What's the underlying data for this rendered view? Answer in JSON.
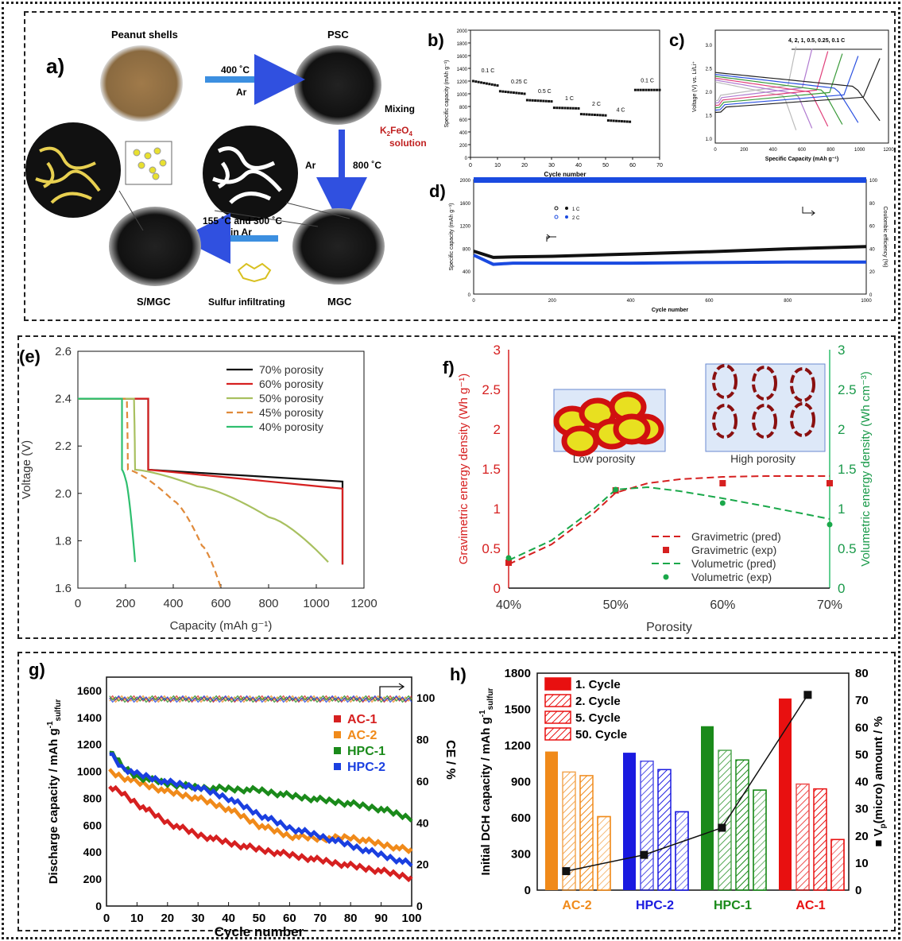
{
  "panel_labels": {
    "a": "a)",
    "b": "b)",
    "c": "c)",
    "d": "d)",
    "e": "(e)",
    "f": "f)",
    "g": "g)",
    "h": "h)"
  },
  "schematic": {
    "peanut_shells": "Peanut shells",
    "psc": "PSC",
    "step1_temp": "400 ˚C",
    "step1_gas": "Ar",
    "mixing": "Mixing",
    "k2feo4": "K",
    "k2feo4_sub": "2",
    "k2feo4_rest": "FeO",
    "k2feo4_sub2": "4",
    "solution": "solution",
    "step2_gas": "Ar",
    "step2_temp": "800 ˚C",
    "mgc": "MGC",
    "step3_line1": "155 ˚C and 300 ˚C",
    "step3_line2": "in Ar",
    "sulfur": "Sulfur infiltrating",
    "smgc": "S/MGC"
  },
  "colors": {
    "black": "#111111",
    "red": "#d62020",
    "olive": "#a8c060",
    "orange": "#e08a3a",
    "green": "#2fbf6f",
    "blue": "#1a3fe0",
    "ggreen": "#1a8a1a",
    "gorange": "#f08a1a",
    "hc_orange": "#f08a1a",
    "hc_blue": "#1a1ae0",
    "hc_green": "#1a8a1a",
    "hc_red": "#e81010"
  },
  "chart_data": [
    {
      "id": "b",
      "type": "scatter",
      "xlabel": "Cycle number",
      "ylabel": "Specific capacity (mAh g⁻¹)",
      "xlim": [
        0,
        70
      ],
      "ylim": [
        0,
        2000
      ],
      "xticks": [
        0,
        10,
        20,
        30,
        40,
        50,
        60,
        70
      ],
      "yticks": [
        0,
        200,
        400,
        600,
        800,
        1000,
        1200,
        1400,
        1600,
        1800,
        2000
      ],
      "rate_labels": [
        {
          "label": "0.1 C",
          "x": 4,
          "y": 1340
        },
        {
          "label": "0.25 C",
          "x": 15,
          "y": 1160
        },
        {
          "label": "0.5 C",
          "x": 25,
          "y": 1010
        },
        {
          "label": "1 C",
          "x": 35,
          "y": 900
        },
        {
          "label": "2 C",
          "x": 45,
          "y": 810
        },
        {
          "label": "4 C",
          "x": 54,
          "y": 720
        },
        {
          "label": "0.1 C",
          "x": 63,
          "y": 1180
        }
      ],
      "segments": [
        {
          "x": [
            1,
            10
          ],
          "y": [
            1200,
            1130
          ]
        },
        {
          "x": [
            11,
            20
          ],
          "y": [
            1040,
            1000
          ]
        },
        {
          "x": [
            21,
            30
          ],
          "y": [
            900,
            880
          ]
        },
        {
          "x": [
            31,
            40
          ],
          "y": [
            780,
            770
          ]
        },
        {
          "x": [
            41,
            50
          ],
          "y": [
            680,
            660
          ]
        },
        {
          "x": [
            51,
            59
          ],
          "y": [
            580,
            560
          ]
        },
        {
          "x": [
            61,
            70
          ],
          "y": [
            1060,
            1060
          ]
        }
      ]
    },
    {
      "id": "c",
      "type": "line",
      "xlabel": "Specific Capacity (mAh g⁻¹)",
      "ylabel": "Voltage (V) vs. Li/Li⁺",
      "xlim": [
        0,
        1200
      ],
      "ylim": [
        0.9,
        3.3
      ],
      "xticks": [
        0,
        200,
        400,
        600,
        800,
        1000,
        1200
      ],
      "yticks": [
        1.0,
        1.5,
        2.0,
        2.5,
        3.0
      ],
      "legend_text": "4,   2,   1,   0.5,  0.25,  0.1 C",
      "series": [
        {
          "cap": 560,
          "color": "#bbbbbb"
        },
        {
          "cap": 670,
          "color": "#b07ad0"
        },
        {
          "cap": 780,
          "color": "#e0407a"
        },
        {
          "cap": 880,
          "color": "#3a9a3a"
        },
        {
          "cap": 990,
          "color": "#2a50e0"
        },
        {
          "cap": 1140,
          "color": "#222222"
        }
      ]
    },
    {
      "id": "d",
      "type": "scatter",
      "xlabel": "Cycle number",
      "ylabel": "Specific capacity (mAh g⁻¹)",
      "ylabel2": "Coulombic efficiency (%)",
      "xlim": [
        0,
        1000
      ],
      "ylim": [
        0,
        2000
      ],
      "ylim2": [
        0,
        100
      ],
      "xticks": [
        0,
        200,
        400,
        600,
        800,
        1000
      ],
      "yticks": [
        0,
        400,
        800,
        1200,
        1600,
        2000
      ],
      "yticks2": [
        0,
        20,
        40,
        60,
        80,
        100
      ],
      "legend": [
        "1 C",
        "2 C"
      ],
      "series": [
        {
          "name": "1 C",
          "x": [
            0,
            50,
            100,
            200,
            400,
            600,
            800,
            1000
          ],
          "y": [
            750,
            640,
            650,
            660,
            700,
            740,
            790,
            830
          ]
        },
        {
          "name": "2 C",
          "x": [
            0,
            50,
            100,
            200,
            400,
            600,
            800,
            1000
          ],
          "y": [
            680,
            520,
            540,
            540,
            540,
            550,
            560,
            560
          ]
        }
      ]
    },
    {
      "id": "e",
      "type": "line",
      "xlabel": "Capacity (mAh g⁻¹)",
      "ylabel": "Voltage (V)",
      "xlim": [
        0,
        1200
      ],
      "ylim": [
        1.6,
        2.6
      ],
      "xticks": [
        0,
        200,
        400,
        600,
        800,
        1000,
        1200
      ],
      "yticks": [
        1.6,
        1.8,
        2.0,
        2.2,
        2.4,
        2.6
      ],
      "series": [
        {
          "name": "70% porosity",
          "x": [
            0,
            295,
            295,
            1110,
            1110
          ],
          "y": [
            2.4,
            2.4,
            2.1,
            2.05,
            1.7
          ]
        },
        {
          "name": "60% porosity",
          "x": [
            0,
            295,
            295,
            1110,
            1110
          ],
          "y": [
            2.4,
            2.4,
            2.1,
            2.02,
            1.7
          ]
        },
        {
          "name": "50% porosity",
          "x": [
            0,
            235,
            240,
            500,
            800,
            1050
          ],
          "y": [
            2.4,
            2.4,
            2.1,
            2.03,
            1.9,
            1.71
          ]
        },
        {
          "name": "45% porosity",
          "x": [
            0,
            205,
            210,
            400,
            520,
            600
          ],
          "y": [
            2.4,
            2.4,
            2.1,
            1.97,
            1.78,
            1.6
          ]
        },
        {
          "name": "40% porosity",
          "x": [
            0,
            185,
            185,
            200,
            240
          ],
          "y": [
            2.4,
            2.4,
            2.1,
            2.06,
            1.71
          ]
        }
      ]
    },
    {
      "id": "f",
      "type": "line",
      "xlabel": "Porosity",
      "ylabel": "Gravimetric energy density (Wh g⁻¹)",
      "ylabel2": "Volumetric energy density (Wh cm⁻³)",
      "ylim": [
        0,
        3
      ],
      "ylim2": [
        0,
        3
      ],
      "xticks": [
        "40%",
        "50%",
        "60%",
        "70%"
      ],
      "yticks": [
        0,
        0.5,
        1,
        1.5,
        2,
        2.5,
        3
      ],
      "series": [
        {
          "name": "Gravimetric (pred)",
          "x": [
            40,
            44,
            48,
            50,
            53,
            56,
            60,
            64,
            70
          ],
          "y": [
            0.3,
            0.55,
            0.95,
            1.2,
            1.32,
            1.37,
            1.4,
            1.41,
            1.41
          ]
        },
        {
          "name": "Gravimetric (exp)",
          "x": [
            40,
            50,
            60,
            70
          ],
          "y": [
            0.32,
            1.23,
            1.32,
            1.32
          ]
        },
        {
          "name": "Volumetric (pred)",
          "x": [
            40,
            44,
            48,
            50,
            53,
            56,
            60,
            64,
            70
          ],
          "y": [
            0.35,
            0.6,
            1.0,
            1.24,
            1.27,
            1.22,
            1.13,
            1.03,
            0.87
          ]
        },
        {
          "name": "Volumetric (exp)",
          "x": [
            40,
            50,
            60,
            70
          ],
          "y": [
            0.38,
            1.24,
            1.07,
            0.8
          ]
        }
      ],
      "inset_labels": [
        "Low porosity",
        "High porosity"
      ]
    },
    {
      "id": "g",
      "type": "line",
      "xlabel": "Cycle number",
      "ylabel": "Discharge capacity / mAh g",
      "ylabel_sup": "-1",
      "ylabel_sub": "sulfur",
      "ylabel2": "CE / %",
      "xlim": [
        0,
        100
      ],
      "ylim": [
        0,
        1700
      ],
      "ylim2": [
        0,
        110
      ],
      "xticks": [
        0,
        10,
        20,
        30,
        40,
        50,
        60,
        70,
        80,
        90,
        100
      ],
      "yticks": [
        0,
        200,
        400,
        600,
        800,
        1000,
        1200,
        1400,
        1600
      ],
      "yticks2": [
        0,
        20,
        40,
        60,
        80,
        100
      ],
      "series": [
        {
          "name": "AC-1",
          "x": [
            1,
            5,
            10,
            20,
            30,
            40,
            50,
            60,
            70,
            80,
            90,
            100
          ],
          "y": [
            880,
            840,
            760,
            620,
            530,
            470,
            420,
            380,
            340,
            300,
            260,
            210
          ]
        },
        {
          "name": "AC-2",
          "x": [
            1,
            5,
            10,
            20,
            30,
            40,
            50,
            60,
            70,
            80,
            90,
            100
          ],
          "y": [
            1000,
            960,
            920,
            850,
            800,
            720,
            600,
            520,
            500,
            510,
            460,
            410
          ]
        },
        {
          "name": "HPC-1",
          "x": [
            1,
            5,
            10,
            20,
            30,
            40,
            50,
            60,
            70,
            80,
            90,
            100
          ],
          "y": [
            1160,
            1040,
            960,
            910,
            880,
            870,
            860,
            820,
            790,
            760,
            720,
            650
          ]
        },
        {
          "name": "HPC-2",
          "x": [
            1,
            5,
            10,
            20,
            30,
            40,
            50,
            60,
            70,
            80,
            90,
            100
          ],
          "y": [
            1140,
            1030,
            980,
            920,
            880,
            800,
            680,
            580,
            520,
            450,
            380,
            310
          ]
        }
      ]
    },
    {
      "id": "h",
      "type": "bar",
      "ylabel": "Initial DCH capacity / mAh g",
      "ylabel_sup": "-1",
      "ylabel_sub": "sulfur",
      "ylabel2": "■ V",
      "ylabel2_sub": "p",
      "ylabel2_rest": "(micro) amount / %",
      "ylim": [
        0,
        1800
      ],
      "ylim2": [
        0,
        80
      ],
      "yticks": [
        0,
        300,
        600,
        900,
        1200,
        1500,
        1800
      ],
      "yticks2": [
        0,
        10,
        20,
        30,
        40,
        50,
        60,
        70,
        80
      ],
      "categories": [
        "AC-2",
        "HPC-2",
        "HPC-1",
        "AC-1"
      ],
      "legend": [
        "1. Cycle",
        "2. Cycle",
        "5. Cycle",
        "50. Cycle"
      ],
      "series": [
        {
          "name": "1. Cycle",
          "values": [
            1150,
            1140,
            1360,
            1590
          ]
        },
        {
          "name": "2. Cycle",
          "values": [
            980,
            1070,
            1160,
            880
          ]
        },
        {
          "name": "5. Cycle",
          "values": [
            950,
            1000,
            1080,
            840
          ]
        },
        {
          "name": "50. Cycle",
          "values": [
            610,
            650,
            830,
            420
          ]
        }
      ],
      "micropore": [
        7,
        13,
        23,
        72
      ]
    }
  ]
}
